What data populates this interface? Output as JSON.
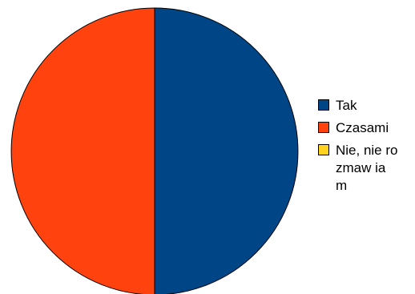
{
  "chart_data": {
    "type": "pie",
    "slices": [
      {
        "label": "Tak",
        "value": 50,
        "color": "#004586"
      },
      {
        "label": "Czasami",
        "value": 50,
        "color": "#ff420e"
      },
      {
        "label": "Nie, nie rozmaw ia m",
        "value": 0,
        "color": "#ffd320"
      }
    ],
    "legend_position": "right"
  }
}
